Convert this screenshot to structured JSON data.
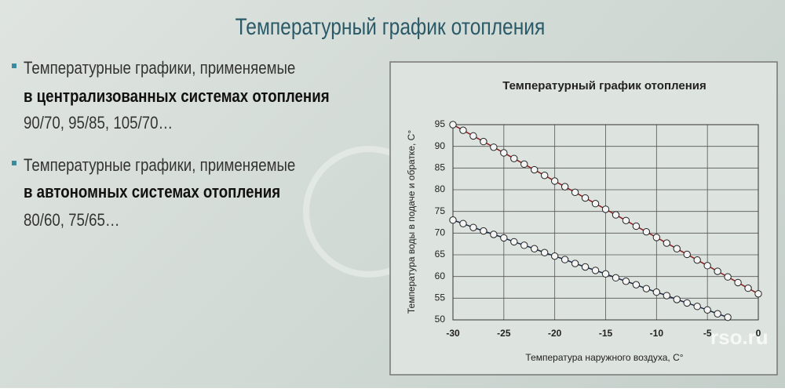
{
  "slide": {
    "title": "Температурный график отопления",
    "bullets": [
      {
        "line1": "Температурные графики, применяемые",
        "line2": "в централизованных системах отопления",
        "line3": "90/70, 95/85, 105/70…"
      },
      {
        "line1": "Температурные графики, применяемые",
        "line2": "в автономных системах отопления",
        "line3": "80/60, 75/65…"
      }
    ],
    "watermark": "rso.ru"
  },
  "chart_data": {
    "type": "line",
    "title": "Температурный график отопления",
    "x_label": "Температура наружного воздуха, С°",
    "y_label": "Температура воды в подаче и обратке, С°",
    "xlim": [
      -30,
      0
    ],
    "xticks": [
      -30,
      -25,
      -20,
      -15,
      -10,
      -5,
      0
    ],
    "ylim": [
      50,
      95
    ],
    "yticks": [
      50,
      55,
      60,
      65,
      70,
      75,
      80,
      85,
      90,
      95
    ],
    "grid": true,
    "series": [
      {
        "color": "#8b1a1a",
        "x": [
          -30,
          -29,
          -28,
          -27,
          -26,
          -25,
          -24,
          -23,
          -22,
          -21,
          -20,
          -19,
          -18,
          -17,
          -16,
          -15,
          -14,
          -13,
          -12,
          -11,
          -10,
          -9,
          -8,
          -7,
          -6,
          -5,
          -4,
          -3,
          -2,
          -1,
          0
        ],
        "values": [
          95,
          93.7,
          92.4,
          91.1,
          89.8,
          88.5,
          87.2,
          85.9,
          84.6,
          83.3,
          82,
          80.7,
          79.4,
          78.1,
          76.8,
          75.5,
          74.2,
          72.9,
          71.6,
          70.3,
          69,
          67.7,
          66.4,
          65.1,
          63.8,
          62.5,
          61.2,
          59.9,
          58.6,
          57.3,
          56
        ]
      },
      {
        "color": "#1a2a4a",
        "x": [
          -30,
          -29,
          -28,
          -27,
          -26,
          -25,
          -24,
          -23,
          -22,
          -21,
          -20,
          -19,
          -18,
          -17,
          -16,
          -15,
          -14,
          -13,
          -12,
          -11,
          -10,
          -9,
          -8,
          -7,
          -6,
          -5,
          -4,
          -3
        ],
        "values": [
          73,
          72.2,
          71.3,
          70.5,
          69.7,
          68.9,
          68,
          67.2,
          66.4,
          65.5,
          64.7,
          63.9,
          63,
          62.2,
          61.4,
          60.6,
          59.7,
          58.9,
          58.1,
          57.2,
          56.4,
          55.6,
          54.7,
          53.9,
          53.1,
          52.3,
          51.4,
          50.6
        ]
      }
    ]
  }
}
